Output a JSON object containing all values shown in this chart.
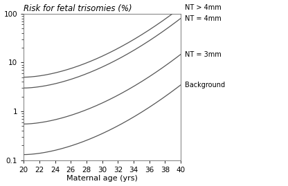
{
  "title": "Risk for fetal trisomies (%)",
  "xlabel": "Maternal age (yrs)",
  "xlim": [
    20,
    40
  ],
  "ylim": [
    0.1,
    100
  ],
  "xticks": [
    20,
    22,
    24,
    26,
    28,
    30,
    32,
    34,
    36,
    38,
    40
  ],
  "line_color": "#555555",
  "label_nt4plus": "NT > 4mm",
  "label_nt4": "NT = 4mm",
  "label_nt3": "NT = 3mm",
  "label_bg": "Background",
  "label_fontsize": 7.0,
  "title_fontsize": 8.5,
  "axis_fontsize": 8.0,
  "tick_fontsize": 7.5,
  "background_color": "#ffffff",
  "curves": {
    "bg": {
      "a": 0.13,
      "b": 0.285
    },
    "nt3": {
      "a": 0.55,
      "b": 0.285
    },
    "nt4": {
      "a": 3.0,
      "b": 0.285
    },
    "nt4plus": {
      "a": 5.0,
      "b": 0.285
    }
  }
}
